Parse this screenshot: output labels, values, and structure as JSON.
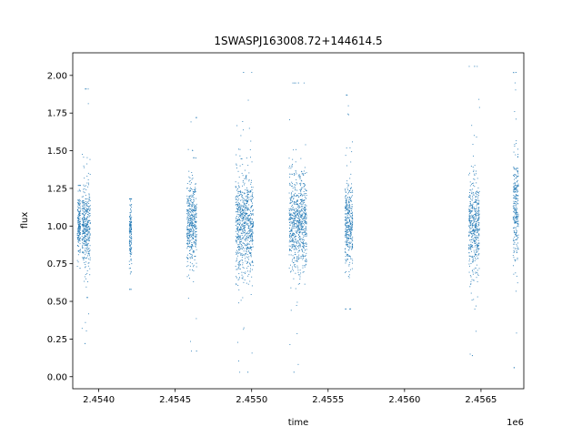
{
  "chart_data": {
    "type": "scatter",
    "title": "1SWASPJ163008.72+144614.5",
    "xlabel": "time",
    "ylabel": "flux",
    "x_offset_label": "1e6",
    "xlim": [
      2453830,
      2456780
    ],
    "ylim": [
      -0.08,
      2.15
    ],
    "xticks": [
      2454000,
      2454500,
      2455000,
      2455500,
      2456000,
      2456500,
      2457000
    ],
    "xtick_labels": [
      "2.4540",
      "2.4545",
      "2.4550",
      "2.4555",
      "2.4560",
      "2.4565",
      ""
    ],
    "yticks": [
      0.0,
      0.25,
      0.5,
      0.75,
      1.0,
      1.25,
      1.5,
      1.75,
      2.0
    ],
    "ytick_labels": [
      "0.00",
      "0.25",
      "0.50",
      "0.75",
      "1.00",
      "1.25",
      "1.50",
      "1.75",
      "2.00"
    ],
    "grid": false,
    "marker_color": "#1f77b4",
    "clusters": [
      {
        "x_min": 2453860,
        "x_max": 2453880,
        "median_flux": 1.02,
        "core_spread": 0.09,
        "extreme_low": 0.72,
        "extreme_high": 1.27
      },
      {
        "x_min": 2453890,
        "x_max": 2453945,
        "median_flux": 1.0,
        "core_spread": 0.13,
        "extreme_low": 0.22,
        "extreme_high": 1.91
      },
      {
        "x_min": 2454200,
        "x_max": 2454215,
        "median_flux": 0.95,
        "core_spread": 0.1,
        "extreme_low": 0.58,
        "extreme_high": 1.18
      },
      {
        "x_min": 2454575,
        "x_max": 2454640,
        "median_flux": 1.02,
        "core_spread": 0.14,
        "extreme_low": 0.17,
        "extreme_high": 1.72
      },
      {
        "x_min": 2454895,
        "x_max": 2455010,
        "median_flux": 1.0,
        "core_spread": 0.17,
        "extreme_low": 0.03,
        "extreme_high": 2.02
      },
      {
        "x_min": 2455245,
        "x_max": 2455360,
        "median_flux": 1.02,
        "core_spread": 0.16,
        "extreme_low": 0.03,
        "extreme_high": 1.95
      },
      {
        "x_min": 2455610,
        "x_max": 2455660,
        "median_flux": 1.0,
        "core_spread": 0.14,
        "extreme_low": 0.45,
        "extreme_high": 1.87
      },
      {
        "x_min": 2456420,
        "x_max": 2456490,
        "median_flux": 1.0,
        "core_spread": 0.16,
        "extreme_low": 0.14,
        "extreme_high": 2.06
      },
      {
        "x_min": 2456710,
        "x_max": 2456745,
        "median_flux": 1.12,
        "core_spread": 0.17,
        "extreme_low": 0.06,
        "extreme_high": 2.02
      }
    ]
  }
}
